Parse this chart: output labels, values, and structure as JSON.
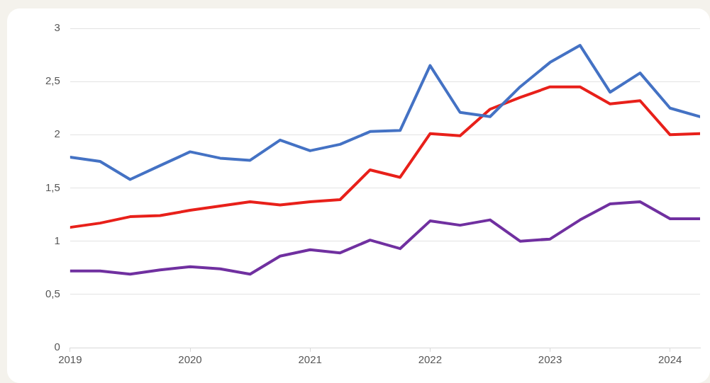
{
  "chart_data": {
    "type": "line",
    "x": [
      "2019-01",
      "2019-04",
      "2019-07",
      "2019-10",
      "2020-01",
      "2020-04",
      "2020-07",
      "2020-10",
      "2021-01",
      "2021-04",
      "2021-07",
      "2021-10",
      "2022-01",
      "2022-04",
      "2022-07",
      "2022-10",
      "2023-01",
      "2023-04",
      "2023-07",
      "2023-10",
      "2024-01",
      "2024-04"
    ],
    "series": [
      {
        "color": "#4472c4",
        "values": [
          1.79,
          1.75,
          1.58,
          1.71,
          1.84,
          1.78,
          1.76,
          1.95,
          1.85,
          1.91,
          2.03,
          2.04,
          2.65,
          2.21,
          2.17,
          2.45,
          2.68,
          2.84,
          2.4,
          2.58,
          2.25,
          2.17
        ]
      },
      {
        "color": "#e8201a",
        "values": [
          1.13,
          1.17,
          1.23,
          1.24,
          1.29,
          1.33,
          1.37,
          1.34,
          1.37,
          1.39,
          1.67,
          1.6,
          2.01,
          1.99,
          2.24,
          2.35,
          2.45,
          2.45,
          2.29,
          2.32,
          2.0,
          2.01
        ]
      },
      {
        "color": "#7030a0",
        "values": [
          0.72,
          0.72,
          0.69,
          0.73,
          0.76,
          0.74,
          0.69,
          0.86,
          0.92,
          0.89,
          1.01,
          0.93,
          1.19,
          1.15,
          1.2,
          1.0,
          1.02,
          1.2,
          1.35,
          1.37,
          1.21,
          1.21
        ]
      }
    ],
    "xlim": [
      "2019-01",
      "2024-04"
    ],
    "xticks": [
      {
        "value": "2019",
        "label": "2019"
      },
      {
        "value": "2020",
        "label": "2020"
      },
      {
        "value": "2021",
        "label": "2021"
      },
      {
        "value": "2022",
        "label": "2022"
      },
      {
        "value": "2023",
        "label": "2023"
      },
      {
        "value": "2024",
        "label": "2024"
      }
    ],
    "ylim": [
      0,
      3
    ],
    "yticks": [
      {
        "value": 0,
        "label": "0"
      },
      {
        "value": 0.5,
        "label": "0,5"
      },
      {
        "value": 1,
        "label": "1"
      },
      {
        "value": 1.5,
        "label": "1,5"
      },
      {
        "value": 2,
        "label": "2"
      },
      {
        "value": 2.5,
        "label": "2,5"
      },
      {
        "value": 3,
        "label": "3"
      }
    ],
    "grid": "y",
    "legend": false,
    "marker": "none",
    "line_style": "solid"
  }
}
